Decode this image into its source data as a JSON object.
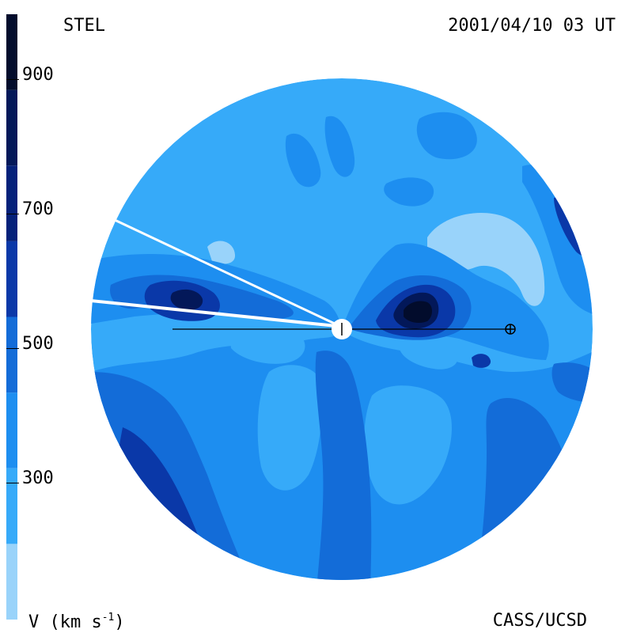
{
  "header": {
    "source_label": "STEL",
    "timestamp": "2001/04/10 03 UT"
  },
  "footer": {
    "credit": "CASS/UCSD",
    "unit_symbol": "V",
    "unit_text": "(km s",
    "unit_exponent": "-1",
    "unit_close": ")"
  },
  "colorbar": {
    "tick_labels": [
      "900",
      "700",
      "500",
      "300"
    ],
    "bands": [
      {
        "from": 200,
        "to": 300,
        "color": "#99d3fa"
      },
      {
        "from": 300,
        "to": 400,
        "color": "#36aaf9"
      },
      {
        "from": 400,
        "to": 500,
        "color": "#1d8ef0"
      },
      {
        "from": 500,
        "to": 600,
        "color": "#136cd8"
      },
      {
        "from": 600,
        "to": 700,
        "color": "#0a38a8"
      },
      {
        "from": 700,
        "to": 800,
        "color": "#04217a"
      },
      {
        "from": 800,
        "to": 900,
        "color": "#031859"
      },
      {
        "from": 900,
        "to": 1000,
        "color": "#020c2c"
      }
    ]
  },
  "colors": {
    "disk_background": "#36aaf9",
    "sun": "#ffffff",
    "line": "#000000"
  }
}
